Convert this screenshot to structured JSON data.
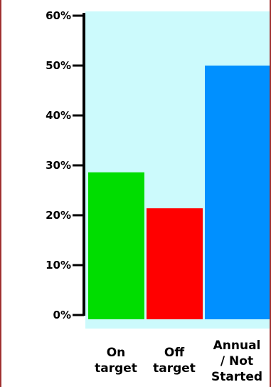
{
  "chart_data": {
    "type": "bar",
    "categories": [
      "On target",
      "Off target",
      "Annual / Not Started"
    ],
    "category_lines": [
      [
        "On",
        "target"
      ],
      [
        "Off",
        "target"
      ],
      [
        "Annual",
        "/ Not",
        "Started"
      ]
    ],
    "values": [
      28.6,
      21.4,
      50.0
    ],
    "bar_colors": [
      "#00dd00",
      "#ff0000",
      "#0090ff"
    ],
    "plot_background": "#ccfafc",
    "ylim": [
      0,
      60
    ],
    "yticks": [
      0,
      10,
      20,
      30,
      40,
      50,
      60
    ],
    "ytick_labels": [
      "0%",
      "10%",
      "20%",
      "30%",
      "40%",
      "50%",
      "60%"
    ],
    "title": "",
    "xlabel": "",
    "ylabel": "",
    "grid": false
  }
}
